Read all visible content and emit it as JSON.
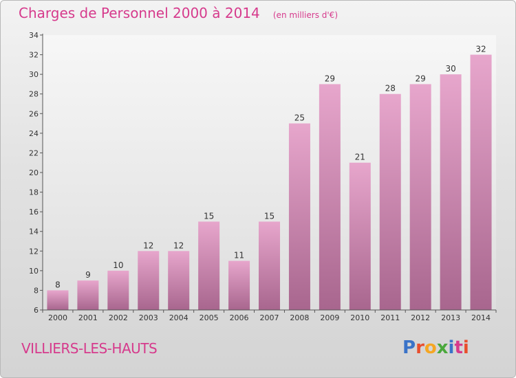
{
  "chart_data": {
    "type": "bar",
    "title": "Charges de Personnel 2000 à 2014",
    "subtitle": "(en milliers d'€)",
    "categories": [
      "2000",
      "2001",
      "2002",
      "2003",
      "2004",
      "2005",
      "2006",
      "2007",
      "2008",
      "2009",
      "2010",
      "2011",
      "2012",
      "2013",
      "2014"
    ],
    "values": [
      8,
      9,
      10,
      12,
      12,
      15,
      11,
      15,
      25,
      29,
      21,
      28,
      29,
      30,
      32
    ],
    "ylim": [
      6,
      34
    ],
    "yticks": [
      6,
      8,
      10,
      12,
      14,
      16,
      18,
      20,
      22,
      24,
      26,
      28,
      30,
      32,
      34
    ],
    "xlabel": "",
    "ylabel": "",
    "grid": false,
    "colors": {
      "bar_top": "#e7a6cc",
      "bar_bottom": "#a8668e",
      "accent": "#d63a8c"
    }
  },
  "footer": {
    "place": "VILLIERS-LES-HAUTS",
    "logo_text": "Proxiti",
    "logo_colors": [
      "#3a73c8",
      "#e84f2e",
      "#f5a623",
      "#4aa83c",
      "#3a73c8",
      "#d63a8c",
      "#e84f2e"
    ]
  }
}
